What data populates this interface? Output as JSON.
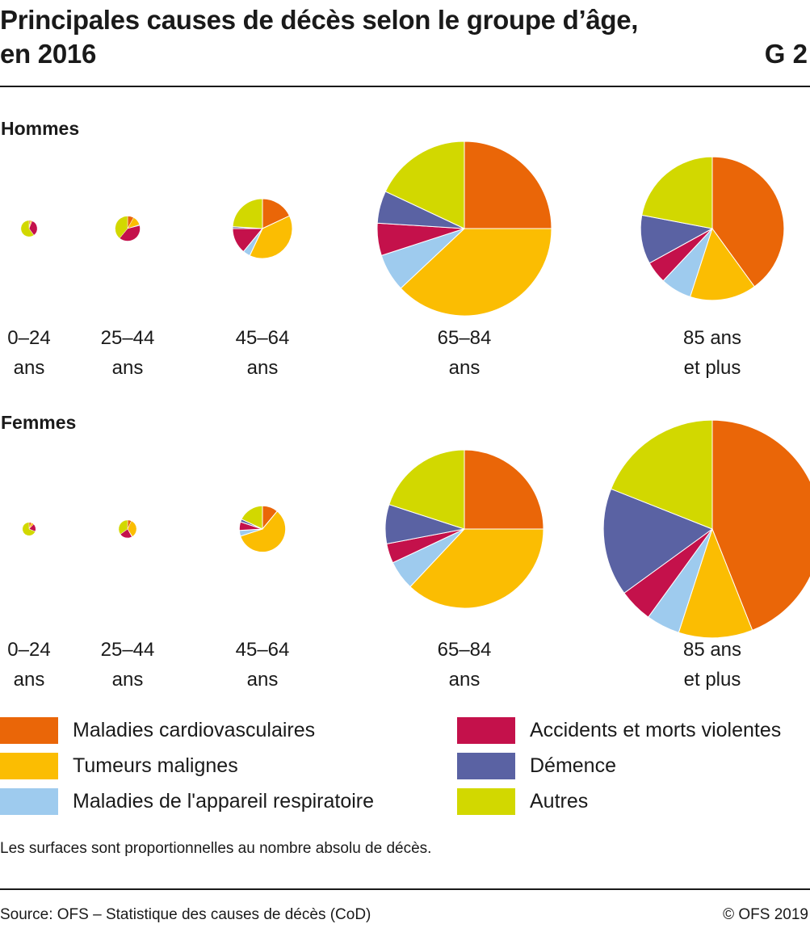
{
  "header": {
    "title_line1": "Principales causes de décès selon le groupe d’âge,",
    "title_line2": "en 2016",
    "chart_code": "G 2"
  },
  "sections": {
    "men": "Hommes",
    "women": "Femmes"
  },
  "age_groups": [
    {
      "line1": "0–24",
      "line2": "ans"
    },
    {
      "line1": "25–44",
      "line2": "ans"
    },
    {
      "line1": "45–64",
      "line2": "ans"
    },
    {
      "line1": "65–84",
      "line2": "ans"
    },
    {
      "line1": "85 ans",
      "line2": "et plus"
    }
  ],
  "legend": [
    {
      "label": "Maladies cardiovasculaires",
      "color": "#ea6608"
    },
    {
      "label": "Tumeurs malignes",
      "color": "#fbbd02"
    },
    {
      "label": "Maladies de l'appareil respiratoire",
      "color": "#9ecbee"
    },
    {
      "label": "Accidents et morts violentes",
      "color": "#c4114b"
    },
    {
      "label": "Démence",
      "color": "#5a62a3"
    },
    {
      "label": "Autres",
      "color": "#d2d800"
    }
  ],
  "footer": {
    "note": "Les surfaces sont proportionnelles au nombre absolu de décès.",
    "source": "Source: OFS – Statistique des causes de décès (CoD)",
    "copyright": "© OFS 2019"
  },
  "chart_data": {
    "type": "pie",
    "title": "Principales causes de décès selon le groupe d’âge, en 2016",
    "size_encoding": "area proportional to absolute number of deaths",
    "series_names": [
      "Maladies cardiovasculaires",
      "Tumeurs malignes",
      "Maladies de l'appareil respiratoire",
      "Accidents et morts violentes",
      "Démence",
      "Autres"
    ],
    "categories": [
      "0–24 ans",
      "25–44 ans",
      "45–64 ans",
      "65–84 ans",
      "85 ans et plus"
    ],
    "panels": [
      {
        "name": "Hommes",
        "relative_totals": [
          1.5,
          3.5,
          20,
          170,
          115
        ],
        "shares": [
          [
            3,
            3,
            0,
            34,
            0,
            60
          ],
          [
            8,
            12,
            1,
            40,
            0,
            39
          ],
          [
            18,
            39,
            4,
            14,
            1,
            24
          ],
          [
            25,
            38,
            7,
            6,
            6,
            18
          ],
          [
            40,
            15,
            7,
            5,
            11,
            22
          ]
        ]
      },
      {
        "name": "Femmes",
        "relative_totals": [
          1,
          1.8,
          12,
          140,
          265
        ],
        "shares": [
          [
            6,
            6,
            0,
            19,
            0,
            69
          ],
          [
            7,
            34,
            1,
            23,
            0,
            35
          ],
          [
            11,
            59,
            4,
            6,
            2,
            18
          ],
          [
            25,
            37,
            6,
            4,
            8,
            20
          ],
          [
            44,
            11,
            5,
            5,
            16,
            19
          ]
        ]
      }
    ]
  }
}
